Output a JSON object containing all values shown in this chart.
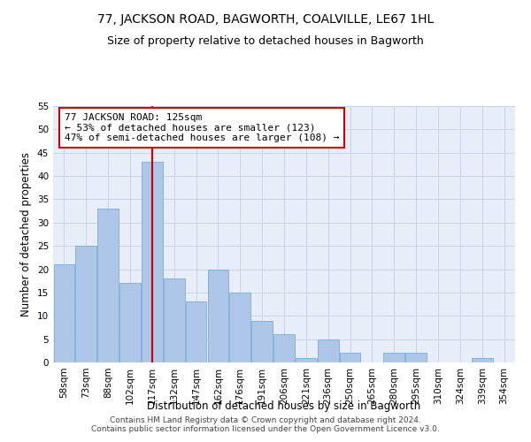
{
  "title": "77, JACKSON ROAD, BAGWORTH, COALVILLE, LE67 1HL",
  "subtitle": "Size of property relative to detached houses in Bagworth",
  "xlabel": "Distribution of detached houses by size in Bagworth",
  "ylabel": "Number of detached properties",
  "bar_labels": [
    "58sqm",
    "73sqm",
    "88sqm",
    "102sqm",
    "117sqm",
    "132sqm",
    "147sqm",
    "162sqm",
    "176sqm",
    "191sqm",
    "206sqm",
    "221sqm",
    "236sqm",
    "250sqm",
    "265sqm",
    "280sqm",
    "295sqm",
    "310sqm",
    "324sqm",
    "339sqm",
    "354sqm"
  ],
  "bar_values": [
    21,
    25,
    33,
    17,
    43,
    18,
    13,
    20,
    15,
    9,
    6,
    1,
    5,
    2,
    0,
    2,
    2,
    0,
    0,
    1,
    0
  ],
  "bar_color": "#aec6e8",
  "bar_edge_color": "#7aadd4",
  "vline_x": 4.0,
  "vline_color": "#cc0000",
  "annotation_text": "77 JACKSON ROAD: 125sqm\n← 53% of detached houses are smaller (123)\n47% of semi-detached houses are larger (108) →",
  "annotation_box_color": "#ffffff",
  "annotation_box_edge": "#cc0000",
  "ylim": [
    0,
    55
  ],
  "yticks": [
    0,
    5,
    10,
    15,
    20,
    25,
    30,
    35,
    40,
    45,
    50,
    55
  ],
  "grid_color": "#c8d4e8",
  "bg_color": "#e8eef7",
  "footer_line1": "Contains HM Land Registry data © Crown copyright and database right 2024.",
  "footer_line2": "Contains public sector information licensed under the Open Government Licence v3.0.",
  "title_fontsize": 10,
  "subtitle_fontsize": 9,
  "axis_label_fontsize": 8.5,
  "tick_fontsize": 7.5,
  "annotation_fontsize": 8
}
